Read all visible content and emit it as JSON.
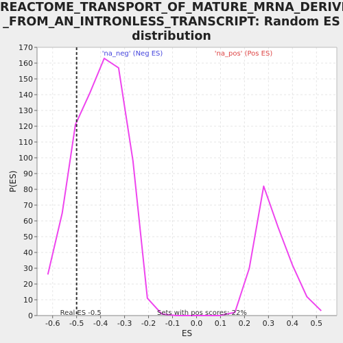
{
  "chart_data": {
    "type": "line",
    "title_lines": [
      "REACTOME_TRANSPORT_OF_MATURE_MRNA_DERIVED",
      "_FROM_AN_INTRONLESS_TRANSCRIPT: Random ES",
      "distribution"
    ],
    "xlabel": "ES",
    "ylabel": "P(ES)",
    "xlim": [
      -0.665,
      0.585
    ],
    "ylim": [
      0,
      170
    ],
    "x_ticks": [
      -0.6,
      -0.5,
      -0.4,
      -0.3,
      -0.2,
      -0.1,
      0.0,
      0.1,
      0.2,
      0.3,
      0.4,
      0.5
    ],
    "x_tick_labels": [
      "-0.6",
      "-0.5",
      "-0.4",
      "-0.3",
      "-0.2",
      "-0.1",
      "0.0",
      "0.1",
      "0.2",
      "0.3",
      "0.4",
      "0.5"
    ],
    "y_ticks": [
      0,
      10,
      20,
      30,
      40,
      50,
      60,
      70,
      80,
      90,
      100,
      110,
      120,
      130,
      140,
      150,
      160,
      170
    ],
    "grid": true,
    "line_color": "#ee44ee",
    "series": [
      {
        "x": [
          -0.62,
          -0.56,
          -0.505,
          -0.445,
          -0.385,
          -0.325,
          -0.265,
          -0.205,
          -0.145,
          -0.085,
          -0.025,
          0.035,
          0.095,
          0.16,
          0.22,
          0.28,
          0.34,
          0.4,
          0.46,
          0.52
        ],
        "values": [
          26,
          65,
          121,
          141,
          163,
          157,
          98,
          11,
          1,
          0,
          0,
          0,
          0,
          2,
          30,
          82,
          56,
          32,
          12,
          3
        ]
      }
    ],
    "real_es": {
      "x": -0.5,
      "label": "Real ES -0.5",
      "color": "#333333"
    },
    "annotations": [
      {
        "text": "'na_neg' (Neg ES)",
        "color": "#4444dd"
      },
      {
        "text": "'na_pos' (Pos ES)",
        "color": "#dd4444"
      },
      {
        "text": "Sets with pos scores: 22%",
        "color": "#333333"
      }
    ],
    "colors": {
      "page_background": "#eeeeee",
      "plot_background": "#ffffff",
      "grid": "#e6e6e6"
    }
  }
}
